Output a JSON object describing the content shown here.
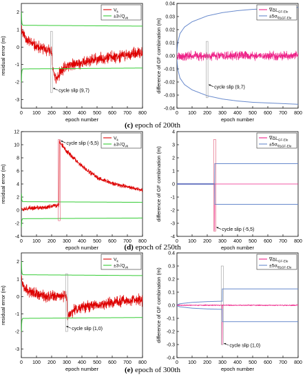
{
  "captions": [
    {
      "letter": "(c)",
      "text": "epoch of 200th"
    },
    {
      "letter": "(d)",
      "text": "epoch of 250th"
    },
    {
      "letter": "(e)",
      "text": "epoch of 300th"
    }
  ],
  "chart_data": [
    {
      "type": "line",
      "panel": "c-left",
      "xlabel": "epoch number",
      "ylabel": "residual error (m)",
      "xlim": [
        0,
        800
      ],
      "ylim": [
        -3.5,
        2.5
      ],
      "xticks": [
        0,
        100,
        200,
        300,
        400,
        500,
        600,
        700,
        800
      ],
      "yticks": [
        -3,
        -2,
        -1,
        0,
        1,
        2
      ],
      "legend_position": "top-right",
      "series": [
        {
          "name": "V_k",
          "name_main": "V",
          "name_sub": "k",
          "color": "#dd0000",
          "kind": "noisy",
          "points": [
            [
              0,
              1.2
            ],
            [
              5,
              0.9
            ],
            [
              40,
              0.4
            ],
            [
              100,
              0.0
            ],
            [
              180,
              -0.2
            ],
            [
              199,
              -0.3
            ],
            [
              205,
              -1.1
            ],
            [
              230,
              -1.9
            ],
            [
              260,
              -1.4
            ],
            [
              300,
              -1.1
            ],
            [
              400,
              -0.9
            ],
            [
              500,
              -0.7
            ],
            [
              600,
              -0.55
            ],
            [
              700,
              -0.45
            ],
            [
              800,
              -0.35
            ]
          ],
          "noise": 0.35,
          "seed": 11
        },
        {
          "name": "±3√Q_vk",
          "name_main": "±3√Q",
          "name_sub": "vk",
          "color": "#33cc33",
          "kind": "band",
          "points": [
            [
              1,
              2.0
            ],
            [
              2,
              1.6
            ],
            [
              4,
              1.35
            ],
            [
              10,
              1.25
            ],
            [
              800,
              1.2
            ]
          ]
        }
      ],
      "highlight": {
        "x": [
          193,
          205
        ],
        "y": [
          -2.6,
          0.9
        ]
      },
      "annotation": {
        "text": "cycle slip (9,7)",
        "x": 205,
        "y": -2.35
      }
    },
    {
      "type": "line",
      "panel": "c-right",
      "xlabel": "epoch number",
      "ylabel": "difference of GF combination (m)",
      "xlim": [
        0,
        800
      ],
      "ylim": [
        -0.04,
        0.04
      ],
      "xticks": [
        0,
        100,
        200,
        300,
        400,
        500,
        600,
        700,
        800
      ],
      "yticks": [
        -0.04,
        -0.03,
        -0.02,
        -0.01,
        0.0,
        0.01,
        0.02,
        0.03,
        0.04
      ],
      "legend_position": "top-right",
      "series": [
        {
          "name": "∇ΔL_GF-Ele",
          "name_main": "∇ΔL",
          "name_sub": "GF-Ele",
          "color": "#ee2288",
          "kind": "noisy",
          "points": [
            [
              0,
              0
            ],
            [
              800,
              0
            ]
          ],
          "noise": 0.0035,
          "seed": 23
        },
        {
          "name": "±5σ_∇ΔGF-Ele",
          "name_main": "±5σ",
          "name_sub": "∇ΔGF-Ele",
          "color": "#6688cc",
          "kind": "band",
          "points": [
            [
              0,
              0.002
            ],
            [
              5,
              0.01
            ],
            [
              20,
              0.017
            ],
            [
              50,
              0.022
            ],
            [
              100,
              0.026
            ],
            [
              200,
              0.0305
            ],
            [
              300,
              0.033
            ],
            [
              400,
              0.0345
            ],
            [
              500,
              0.0355
            ],
            [
              600,
              0.036
            ],
            [
              700,
              0.0365
            ],
            [
              800,
              0.037
            ]
          ]
        }
      ],
      "highlight": {
        "x": [
          193,
          205
        ],
        "y": [
          -0.032,
          0.011
        ]
      },
      "annotation": {
        "text": "cycle slip (9,7)",
        "x": 205,
        "y": -0.022
      }
    },
    {
      "type": "line",
      "panel": "d-left",
      "xlabel": "epoch number",
      "ylabel": "residual error (m)",
      "xlim": [
        0,
        800
      ],
      "ylim": [
        -4,
        12
      ],
      "xticks": [
        0,
        100,
        200,
        300,
        400,
        500,
        600,
        700,
        800
      ],
      "yticks": [
        -4,
        -2,
        0,
        2,
        4,
        6,
        8,
        10,
        12
      ],
      "legend_position": "top-right",
      "series": [
        {
          "name": "V_k",
          "name_main": "V",
          "name_sub": "k",
          "color": "#dd0000",
          "kind": "noisy",
          "points": [
            [
              0,
              0.6
            ],
            [
              5,
              0.2
            ],
            [
              50,
              0.3
            ],
            [
              150,
              0.4
            ],
            [
              249,
              0.8
            ],
            [
              251,
              10.5
            ],
            [
              300,
              9.0
            ],
            [
              400,
              6.7
            ],
            [
              500,
              5.0
            ],
            [
              600,
              4.1
            ],
            [
              700,
              3.6
            ],
            [
              800,
              3.0
            ]
          ],
          "noise": 0.35,
          "seed": 37
        },
        {
          "name": "±3√Q_vk",
          "name_main": "±3√Q",
          "name_sub": "vk",
          "color": "#33cc33",
          "kind": "band",
          "points": [
            [
              1,
              2.5
            ],
            [
              3,
              1.6
            ],
            [
              8,
              1.3
            ],
            [
              800,
              1.2
            ]
          ]
        }
      ],
      "highlight": {
        "x": [
          244,
          256
        ],
        "y": [
          -1.6,
          10.8
        ]
      },
      "annotation": {
        "text": "cycle slip (-5,5)",
        "x": 256,
        "y": 10.6
      }
    },
    {
      "type": "line",
      "panel": "d-right",
      "xlabel": "epoch number",
      "ylabel": "difference of GF combination (m)",
      "xlim": [
        0,
        800
      ],
      "ylim": [
        -4,
        4
      ],
      "xticks": [
        0,
        100,
        200,
        300,
        400,
        500,
        600,
        700,
        800
      ],
      "yticks": [
        -4,
        -3,
        -2,
        -1,
        0,
        1,
        2,
        3,
        4
      ],
      "legend_position": "top-right",
      "series": [
        {
          "name": "∇ΔL_GF-Ele",
          "name_main": "∇ΔL",
          "name_sub": "GF-Ele",
          "color": "#ee2288",
          "kind": "spike",
          "points": [
            [
              0,
              0
            ],
            [
              248,
              0
            ],
            [
              249,
              -3.55
            ],
            [
              250,
              0
            ],
            [
              800,
              0
            ]
          ]
        },
        {
          "name": "±5σ_∇ΔGF-Ele",
          "name_main": "±5σ",
          "name_sub": "∇ΔGF-Ele",
          "color": "#6688cc",
          "kind": "band",
          "points": [
            [
              0,
              0.03
            ],
            [
              249,
              0.03
            ],
            [
              250,
              1.55
            ],
            [
              800,
              1.55
            ]
          ]
        }
      ],
      "highlight": {
        "x": [
          243,
          256
        ],
        "y": [
          -3.6,
          3.4
        ]
      },
      "annotation": {
        "text": "cycle slip (-5,5)",
        "x": 256,
        "y": -3.3
      }
    },
    {
      "type": "line",
      "panel": "e-left",
      "xlabel": "epoch number",
      "ylabel": "residual error (m)",
      "xlim": [
        0,
        800
      ],
      "ylim": [
        -3.5,
        2.5
      ],
      "xticks": [
        0,
        100,
        200,
        300,
        400,
        500,
        600,
        700,
        800
      ],
      "yticks": [
        -3,
        -2,
        -1,
        0,
        1,
        2
      ],
      "legend_position": "top-right",
      "series": [
        {
          "name": "V_k",
          "name_main": "V",
          "name_sub": "k",
          "color": "#dd0000",
          "kind": "noisy",
          "points": [
            [
              0,
              1.3
            ],
            [
              5,
              0.8
            ],
            [
              40,
              0.35
            ],
            [
              100,
              0.1
            ],
            [
              200,
              0.0
            ],
            [
              299,
              0.1
            ],
            [
              305,
              -1.2
            ],
            [
              340,
              -0.8
            ],
            [
              400,
              -0.6
            ],
            [
              500,
              -0.45
            ],
            [
              600,
              -0.35
            ],
            [
              700,
              -0.25
            ],
            [
              800,
              -0.2
            ]
          ],
          "noise": 0.35,
          "seed": 53
        },
        {
          "name": "±3√Q_vk",
          "name_main": "±3√Q",
          "name_sub": "vk",
          "color": "#33cc33",
          "kind": "band",
          "points": [
            [
              1,
              2.0
            ],
            [
              2,
              1.6
            ],
            [
              4,
              1.35
            ],
            [
              10,
              1.25
            ],
            [
              800,
              1.2
            ]
          ]
        }
      ],
      "highlight": {
        "x": [
          292,
          306
        ],
        "y": [
          -2.0,
          1.3
        ]
      },
      "annotation": {
        "text": "cycle slip (1,0)",
        "x": 292,
        "y": -1.7
      }
    },
    {
      "type": "line",
      "panel": "e-right",
      "xlabel": "epoch number",
      "ylabel": "difference of GF combination (m)",
      "xlim": [
        0,
        800
      ],
      "ylim": [
        -0.4,
        0.4
      ],
      "xticks": [
        0,
        100,
        200,
        300,
        400,
        500,
        600,
        700,
        800
      ],
      "yticks": [
        -0.4,
        -0.3,
        -0.2,
        -0.1,
        0.0,
        0.1,
        0.2,
        0.3,
        0.4
      ],
      "legend_position": "top-right",
      "series": [
        {
          "name": "∇ΔL_GF-Ele",
          "name_main": "∇ΔL",
          "name_sub": "GF-Ele",
          "color": "#ee2288",
          "kind": "spike",
          "points": [
            [
              0,
              0
            ],
            [
              298,
              0
            ],
            [
              299,
              -0.3
            ],
            [
              300,
              0
            ],
            [
              800,
              0
            ]
          ],
          "noise": 0.004,
          "seed": 71
        },
        {
          "name": "±5σ_∇ΔGF-Ele",
          "name_main": "±5σ",
          "name_sub": "∇ΔGF-Ele",
          "color": "#6688cc",
          "kind": "band",
          "points": [
            [
              0,
              0.004
            ],
            [
              20,
              0.012
            ],
            [
              100,
              0.022
            ],
            [
              200,
              0.028
            ],
            [
              299,
              0.031
            ],
            [
              300,
              0.125
            ],
            [
              800,
              0.125
            ]
          ]
        }
      ],
      "highlight": {
        "x": [
          292,
          306
        ],
        "y": [
          -0.3,
          0.3
        ]
      },
      "annotation": {
        "text": "cycle slip (1,0)",
        "x": 306,
        "y": -0.29
      }
    }
  ]
}
